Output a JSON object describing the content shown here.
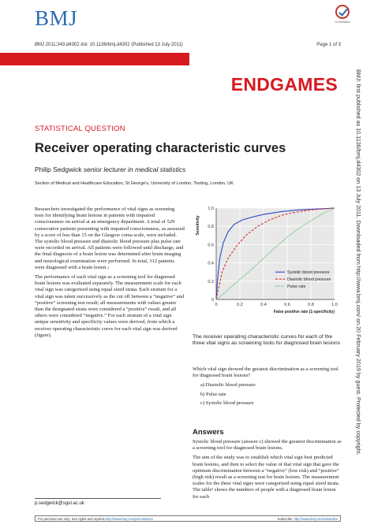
{
  "header": {
    "logo": "BMJ",
    "crossmark_label": "CrossMark",
    "citation_journal": "BMJ",
    "citation_rest": " 2011;343:d4302 doi: 10.1136/bmj.d4302 (Published 13 July 2011)",
    "page": "Page 1 of 3",
    "band": "ENDGAMES"
  },
  "article": {
    "section": "STATISTICAL QUESTION",
    "title": "Receiver operating characteristic curves",
    "author_name": "Philip Sedgwick ",
    "author_role": "senior lecturer in medical statistics",
    "affiliation": "Section of Medical and Healthcare Education, St George's, University of London, Tooting, London, UK",
    "para1": "Researchers investigated the performance of vital signs as screening tests for identifying brain lesions in patients with impaired consciousness on arrival at an emergency department. A total of 529 consecutive patients presenting with impaired consciousness, as assessed by a score of less than 15 on the Glasgow coma scale, were included. The systolic blood pressure and diastolic blood pressure plus pulse rate were recorded on arrival. All patients were followed until discharge, and the final diagnosis of a brain lesion was determined after brain imaging and neurological examination were performed. In total, 312 patients were diagnosed with a brain lesion.",
    "para1_ref": "1",
    "para2": "The performance of each vital sign as a screening tool for diagnosed brain lesions was evaluated separately. The measurement scale for each vital sign was categorised using equal sized strata. Each stratum for a vital sign was taken successively as the cut off between a “negative” and “positive” screening test result; all measurements with values greater than the designated strata were considered a “positive” result, and all others were considered “negative.” For each stratum of a vital sign unique sensitivity and specificity values were derived, from which a receiver operating characteristic curve for each vital sign was derived (figure).",
    "caption": "The receiver operating characteristic curves for each of the three vital signs as screening tools for diagnosed brain lesions",
    "question": "Which vital sign showed the greatest discrimination as a screening tool for diagnosed brain lesions?",
    "options": [
      "a) Diastolic blood pressure",
      "b) Pulse rate",
      "c) Systolic blood pressure"
    ],
    "answers_heading": "Answers",
    "answer_p1": "Systolic blood pressure (answer c) showed the greatest discrimination as a screening tool for diagnosed brain lesions.",
    "answer_p2": "The aim of the study was to establish which vital sign best predicted brain lesions, and then to select the value of that vital sign that gave the optimum discrimination between a “negative” (low risk) and “positive” (high risk) result as a screening test for brain lesions. The measurement scales for the three vital signs were categorised using equal sized strata. The table¹ shows the numbers of people with a diagnosed brain lesion for each",
    "email": "p.sedgwick@sgul.ac.uk"
  },
  "footer": {
    "left_prefix": "For personal use only: See rights and reprints ",
    "left_link": "http://www.bmj.com/permissions",
    "right_prefix": "Subscribe: ",
    "right_link": "http://www.bmj.com/subscribe"
  },
  "sidebar": {
    "text": "BMJ: first published as 10.1136/bmj.d4302 on 13 July 2011. Downloaded from http://www.bmj.com/ on 20 February 2019 by guest. Protected by copyright."
  },
  "colors": {
    "brand_blue": "#2a6bb3",
    "brand_red": "#d71920",
    "systolic": "#2b47c6",
    "diastolic": "#d9302c",
    "pulse": "#33b24a"
  },
  "chart_data": {
    "type": "line",
    "xlabel": "False positive rate (1-specificity)",
    "ylabel": "Sensitivity",
    "xlim": [
      0,
      1
    ],
    "ylim": [
      0,
      1
    ],
    "xticks": [
      "0",
      "0.2",
      "0.4",
      "0.6",
      "0.8",
      "1.0"
    ],
    "yticks": [
      "0",
      "0.2",
      "0.4",
      "0.6",
      "0.8",
      "1.0"
    ],
    "grid": true,
    "legend_position": "bottom-right",
    "series": [
      {
        "name": "Systolic blood pressure",
        "style": "solid",
        "x": [
          0,
          0.01,
          0.03,
          0.06,
          0.1,
          0.15,
          0.22,
          0.3,
          0.4,
          0.55,
          0.7,
          0.85,
          1.0
        ],
        "y": [
          0,
          0.2,
          0.45,
          0.62,
          0.74,
          0.82,
          0.87,
          0.9,
          0.93,
          0.96,
          0.98,
          0.99,
          1.0
        ]
      },
      {
        "name": "Diastolic blood pressure",
        "style": "dashed",
        "x": [
          0,
          0.02,
          0.05,
          0.1,
          0.17,
          0.25,
          0.35,
          0.45,
          0.55,
          0.65,
          0.8,
          1.0
        ],
        "y": [
          0,
          0.12,
          0.3,
          0.45,
          0.58,
          0.7,
          0.8,
          0.87,
          0.92,
          0.95,
          0.98,
          1.0
        ]
      },
      {
        "name": "Pulse rate",
        "style": "dotted",
        "x": [
          0,
          0.05,
          0.12,
          0.2,
          0.3,
          0.4,
          0.5,
          0.6,
          0.7,
          0.8,
          0.9,
          1.0
        ],
        "y": [
          0,
          0.05,
          0.13,
          0.22,
          0.33,
          0.45,
          0.57,
          0.68,
          0.78,
          0.86,
          0.94,
          1.0
        ]
      }
    ]
  }
}
